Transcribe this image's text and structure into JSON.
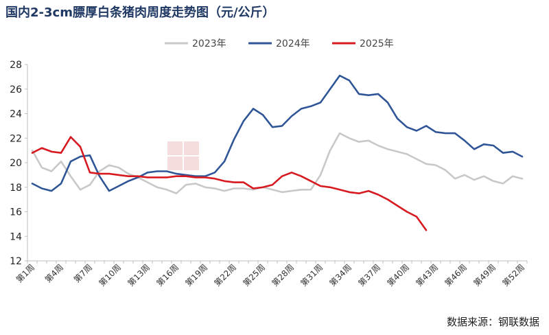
{
  "chart_data": {
    "type": "line",
    "title": "国内2-3cm膘厚白条猪肉周度走势图（元/公斤）",
    "source": "数据来源：钢联数据",
    "x_tick_labels": [
      "第1周",
      "第4周",
      "第7周",
      "第10周",
      "第13周",
      "第16周",
      "第19周",
      "第22周",
      "第25周",
      "第28周",
      "第31周",
      "第34周",
      "第37周",
      "第40周",
      "第43周",
      "第46周",
      "第49周",
      "第52周"
    ],
    "x_tick_weeks": [
      1,
      4,
      7,
      10,
      13,
      16,
      19,
      22,
      25,
      28,
      31,
      34,
      37,
      40,
      43,
      46,
      49,
      52
    ],
    "ylim": [
      12,
      28
    ],
    "y_ticks": [
      12,
      14,
      16,
      18,
      20,
      22,
      24,
      26,
      28
    ],
    "legend_position": "top-center",
    "series": [
      {
        "name": "2023年",
        "color": "#c8c8c8",
        "x": [
          1,
          2,
          3,
          4,
          5,
          6,
          7,
          8,
          9,
          10,
          11,
          12,
          13,
          14,
          15,
          16,
          17,
          18,
          19,
          20,
          21,
          22,
          23,
          24,
          25,
          26,
          27,
          28,
          29,
          30,
          31,
          32,
          33,
          34,
          35,
          36,
          37,
          38,
          39,
          40,
          41,
          42,
          43,
          44,
          45,
          46,
          47,
          48,
          49,
          50,
          51,
          52
        ],
        "values": [
          21.0,
          19.6,
          19.3,
          20.1,
          18.9,
          17.8,
          18.2,
          19.3,
          19.8,
          19.6,
          19.1,
          18.8,
          18.4,
          18.0,
          17.8,
          17.5,
          18.2,
          18.3,
          18.0,
          17.9,
          17.7,
          17.9,
          17.9,
          17.8,
          18.0,
          17.8,
          17.6,
          17.7,
          17.8,
          17.8,
          19.0,
          21.0,
          22.4,
          22.0,
          21.7,
          21.8,
          21.4,
          21.1,
          20.9,
          20.7,
          20.3,
          19.9,
          19.8,
          19.4,
          18.7,
          19.0,
          18.6,
          18.9,
          18.5,
          18.3,
          18.9,
          18.7
        ]
      },
      {
        "name": "2024年",
        "color": "#2f5597",
        "x": [
          1,
          2,
          3,
          4,
          5,
          6,
          7,
          8,
          9,
          10,
          11,
          12,
          13,
          14,
          15,
          16,
          17,
          18,
          19,
          20,
          21,
          22,
          23,
          24,
          25,
          26,
          27,
          28,
          29,
          30,
          31,
          32,
          33,
          34,
          35,
          36,
          37,
          38,
          39,
          40,
          41,
          42,
          43,
          44,
          45,
          46,
          47,
          48,
          49,
          50,
          51,
          52
        ],
        "values": [
          18.3,
          17.9,
          17.7,
          18.3,
          20.1,
          20.5,
          20.6,
          18.9,
          17.7,
          18.1,
          18.5,
          18.8,
          19.2,
          19.3,
          19.3,
          19.1,
          19.0,
          18.9,
          18.9,
          19.2,
          20.1,
          21.9,
          23.4,
          24.4,
          23.9,
          22.9,
          23.0,
          23.8,
          24.4,
          24.6,
          24.9,
          26.0,
          27.1,
          26.7,
          25.6,
          25.5,
          25.6,
          24.9,
          23.6,
          22.9,
          22.6,
          23.0,
          22.5,
          22.4,
          22.4,
          21.8,
          21.1,
          21.5,
          21.4,
          20.8,
          20.9,
          20.5
        ]
      },
      {
        "name": "2025年",
        "color": "#d71920",
        "x": [
          1,
          2,
          3,
          4,
          5,
          6,
          7,
          8,
          9,
          10,
          11,
          12,
          13,
          14,
          15,
          16,
          17,
          18,
          19,
          20,
          21,
          22,
          23,
          24,
          25,
          26,
          27,
          28,
          29,
          30,
          31,
          32,
          33,
          34,
          35,
          36,
          37,
          38,
          39,
          40,
          41,
          42
        ],
        "values": [
          20.8,
          21.2,
          20.9,
          20.8,
          22.1,
          21.3,
          19.2,
          19.1,
          19.1,
          19.0,
          18.9,
          18.9,
          18.8,
          18.8,
          18.8,
          18.9,
          18.9,
          18.8,
          18.8,
          18.7,
          18.5,
          18.4,
          18.4,
          17.9,
          18.0,
          18.2,
          18.9,
          19.2,
          18.9,
          18.5,
          18.1,
          18.0,
          17.8,
          17.6,
          17.5,
          17.7,
          17.4,
          17.0,
          16.5,
          16.0,
          15.6,
          14.5
        ]
      }
    ]
  }
}
